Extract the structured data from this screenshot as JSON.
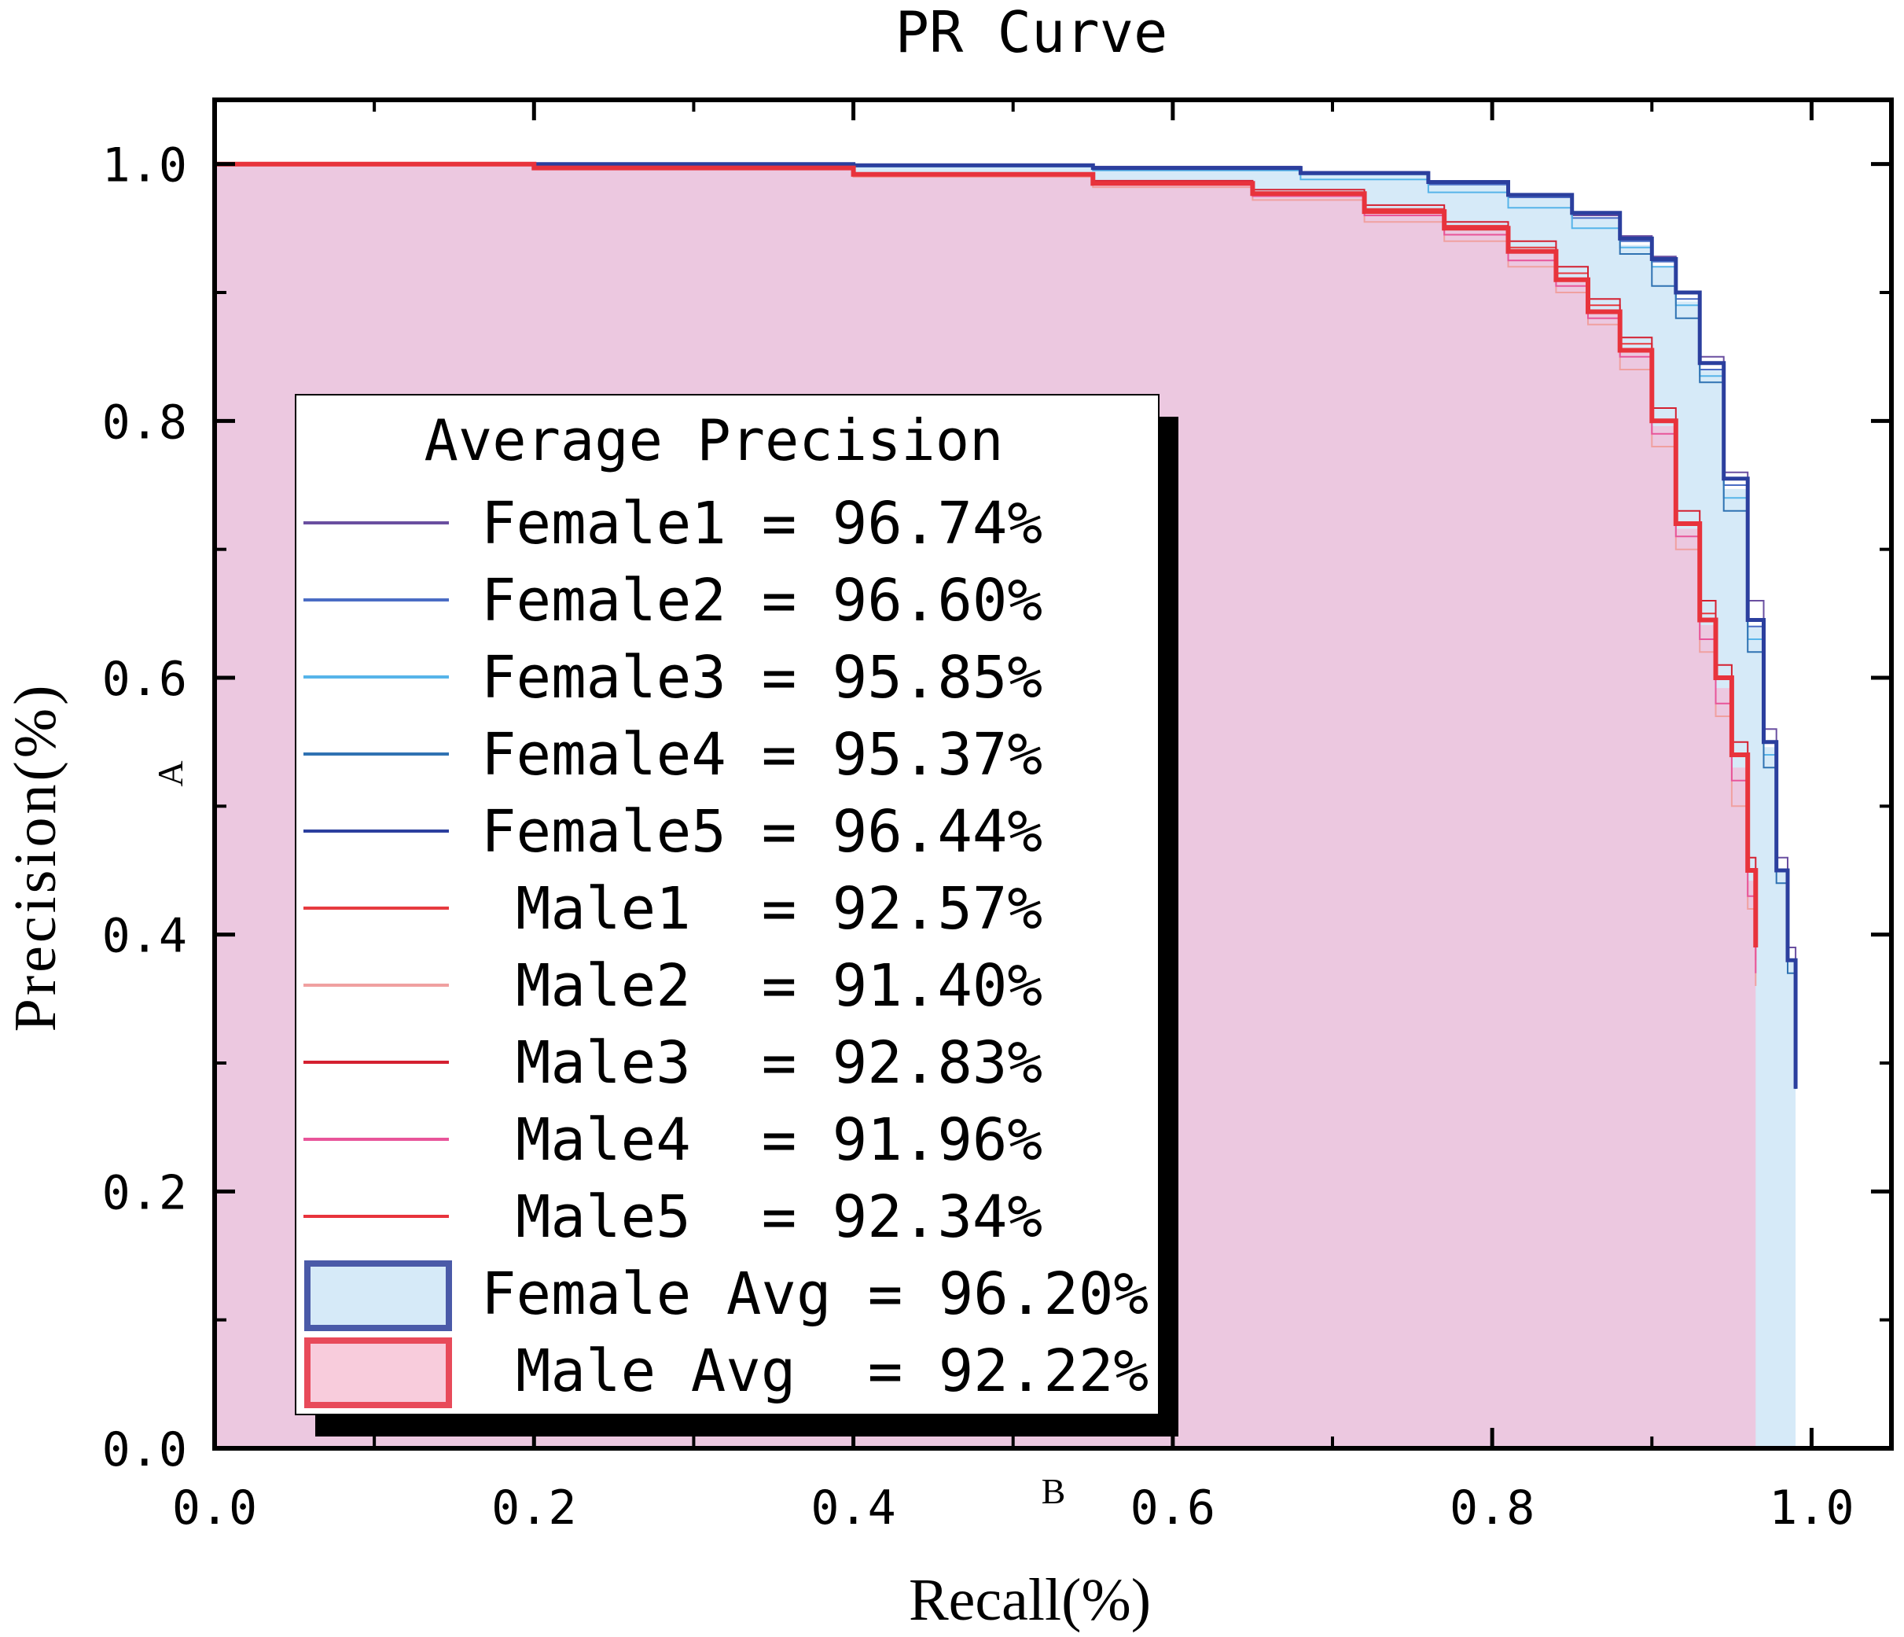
{
  "chart_data": {
    "type": "line",
    "title": "PR Curve",
    "xlabel": "Recall(%)",
    "ylabel": "Precision(%)",
    "xlim": [
      0.0,
      1.05
    ],
    "ylim": [
      0.0,
      1.05
    ],
    "xticks": [
      "0.0",
      "0.2",
      "0.4",
      "0.6",
      "0.8",
      "1.0"
    ],
    "yticks": [
      "0.0",
      "0.2",
      "0.4",
      "0.6",
      "0.8",
      "1.0"
    ],
    "annotations": {
      "a": "A",
      "b": "B"
    },
    "legend": {
      "title": "Average Precision",
      "position": "center-left",
      "entries": [
        {
          "label": "Female1",
          "value": "96.74%",
          "color": "#6a4fa0"
        },
        {
          "label": "Female2",
          "value": "96.60%",
          "color": "#4a6cc4"
        },
        {
          "label": "Female3",
          "value": "95.85%",
          "color": "#56b4e9"
        },
        {
          "label": "Female4",
          "value": "95.37%",
          "color": "#2f72b2"
        },
        {
          "label": "Female5",
          "value": "96.44%",
          "color": "#2b3f9e"
        },
        {
          "label": "Male1",
          "value": "92.57%",
          "color": "#e63a3f"
        },
        {
          "label": "Male2",
          "value": "91.40%",
          "color": "#f0a0a0"
        },
        {
          "label": "Male3",
          "value": "92.83%",
          "color": "#d42030"
        },
        {
          "label": "Male4",
          "value": "91.96%",
          "color": "#e8559a"
        },
        {
          "label": "Male5",
          "value": "92.34%",
          "color": "#e8333c"
        }
      ],
      "avg_entries": [
        {
          "label": "Female Avg",
          "value": "96.20%",
          "fill": "#d6eaf8",
          "border": "#4a5aa8"
        },
        {
          "label": "Male  Avg",
          "value": "92.22%",
          "fill": "#f8ccdc",
          "border": "#e84a5a"
        }
      ]
    },
    "series": [
      {
        "name": "Female1",
        "color": "#6a4fa0",
        "width": 2,
        "x": [
          0,
          0.2,
          0.4,
          0.55,
          0.68,
          0.76,
          0.81,
          0.85,
          0.88,
          0.9,
          0.915,
          0.93,
          0.945,
          0.96,
          0.97,
          0.978,
          0.985,
          0.99
        ],
        "y": [
          1.0,
          1.0,
          0.999,
          0.998,
          0.994,
          0.985,
          0.975,
          0.96,
          0.944,
          0.928,
          0.9,
          0.85,
          0.76,
          0.66,
          0.56,
          0.46,
          0.39,
          0.3
        ]
      },
      {
        "name": "Female2",
        "color": "#4a6cc4",
        "width": 2,
        "x": [
          0,
          0.2,
          0.4,
          0.55,
          0.68,
          0.76,
          0.81,
          0.85,
          0.88,
          0.9,
          0.915,
          0.93,
          0.945,
          0.96,
          0.97,
          0.978,
          0.985,
          0.99
        ],
        "y": [
          1.0,
          1.0,
          0.999,
          0.997,
          0.993,
          0.984,
          0.974,
          0.958,
          0.94,
          0.924,
          0.895,
          0.84,
          0.75,
          0.64,
          0.55,
          0.45,
          0.38,
          0.28
        ]
      },
      {
        "name": "Female3",
        "color": "#56b4e9",
        "width": 2,
        "x": [
          0,
          0.2,
          0.4,
          0.55,
          0.68,
          0.76,
          0.81,
          0.85,
          0.88,
          0.9,
          0.915,
          0.93,
          0.945,
          0.96,
          0.97,
          0.978,
          0.985,
          0.99
        ],
        "y": [
          1.0,
          1.0,
          0.998,
          0.995,
          0.988,
          0.978,
          0.966,
          0.95,
          0.935,
          0.92,
          0.89,
          0.835,
          0.74,
          0.63,
          0.54,
          0.45,
          0.38,
          0.28
        ]
      },
      {
        "name": "Female4",
        "color": "#2f72b2",
        "width": 2,
        "x": [
          0,
          0.2,
          0.4,
          0.55,
          0.68,
          0.76,
          0.81,
          0.85,
          0.88,
          0.9,
          0.915,
          0.93,
          0.945,
          0.96,
          0.97,
          0.978,
          0.985,
          0.99
        ],
        "y": [
          1.0,
          1.0,
          0.999,
          0.996,
          0.992,
          0.986,
          0.976,
          0.962,
          0.93,
          0.905,
          0.88,
          0.83,
          0.73,
          0.62,
          0.53,
          0.44,
          0.37,
          0.28
        ]
      },
      {
        "name": "Female5",
        "color": "#2b3f9e",
        "width": 5,
        "x": [
          0,
          0.2,
          0.4,
          0.55,
          0.68,
          0.76,
          0.81,
          0.85,
          0.88,
          0.9,
          0.915,
          0.93,
          0.945,
          0.96,
          0.97,
          0.978,
          0.985,
          0.99
        ],
        "y": [
          1.0,
          1.0,
          0.999,
          0.997,
          0.993,
          0.986,
          0.976,
          0.962,
          0.942,
          0.926,
          0.9,
          0.845,
          0.755,
          0.645,
          0.55,
          0.45,
          0.38,
          0.28
        ]
      },
      {
        "name": "Male1",
        "color": "#e63a3f",
        "width": 2,
        "x": [
          0,
          0.2,
          0.4,
          0.55,
          0.65,
          0.72,
          0.77,
          0.81,
          0.84,
          0.86,
          0.88,
          0.9,
          0.915,
          0.93,
          0.94,
          0.95,
          0.96,
          0.965
        ],
        "y": [
          1.0,
          0.998,
          0.992,
          0.985,
          0.978,
          0.965,
          0.952,
          0.935,
          0.915,
          0.89,
          0.86,
          0.8,
          0.72,
          0.65,
          0.6,
          0.54,
          0.45,
          0.38
        ]
      },
      {
        "name": "Male2",
        "color": "#f0a0a0",
        "width": 2,
        "x": [
          0,
          0.2,
          0.4,
          0.55,
          0.65,
          0.72,
          0.77,
          0.81,
          0.84,
          0.86,
          0.88,
          0.9,
          0.915,
          0.93,
          0.94,
          0.95,
          0.96,
          0.965
        ],
        "y": [
          1.0,
          0.996,
          0.99,
          0.982,
          0.972,
          0.955,
          0.94,
          0.92,
          0.9,
          0.875,
          0.84,
          0.78,
          0.7,
          0.62,
          0.57,
          0.5,
          0.42,
          0.36
        ]
      },
      {
        "name": "Male3",
        "color": "#d42030",
        "width": 2,
        "x": [
          0,
          0.2,
          0.4,
          0.55,
          0.65,
          0.72,
          0.77,
          0.81,
          0.84,
          0.86,
          0.88,
          0.9,
          0.915,
          0.93,
          0.94,
          0.95,
          0.96,
          0.965
        ],
        "y": [
          1.0,
          0.998,
          0.993,
          0.987,
          0.98,
          0.968,
          0.955,
          0.94,
          0.92,
          0.895,
          0.865,
          0.81,
          0.73,
          0.66,
          0.61,
          0.55,
          0.46,
          0.39
        ]
      },
      {
        "name": "Male4",
        "color": "#e8559a",
        "width": 2,
        "x": [
          0,
          0.2,
          0.4,
          0.55,
          0.65,
          0.72,
          0.77,
          0.81,
          0.84,
          0.86,
          0.88,
          0.9,
          0.915,
          0.93,
          0.94,
          0.95,
          0.96,
          0.965
        ],
        "y": [
          1.0,
          0.997,
          0.991,
          0.984,
          0.975,
          0.96,
          0.945,
          0.925,
          0.905,
          0.88,
          0.85,
          0.79,
          0.71,
          0.63,
          0.58,
          0.52,
          0.43,
          0.37
        ]
      },
      {
        "name": "Male5",
        "color": "#e8333c",
        "width": 6,
        "x": [
          0,
          0.2,
          0.4,
          0.55,
          0.65,
          0.72,
          0.77,
          0.81,
          0.84,
          0.86,
          0.88,
          0.9,
          0.915,
          0.93,
          0.94,
          0.95,
          0.96,
          0.965
        ],
        "y": [
          1.0,
          0.997,
          0.992,
          0.985,
          0.977,
          0.963,
          0.95,
          0.932,
          0.91,
          0.885,
          0.855,
          0.8,
          0.72,
          0.645,
          0.6,
          0.54,
          0.45,
          0.39
        ]
      }
    ],
    "areas": [
      {
        "name": "Female Avg",
        "fill": "#d6eaf8",
        "x": [
          0,
          0.2,
          0.4,
          0.55,
          0.68,
          0.76,
          0.81,
          0.85,
          0.88,
          0.9,
          0.915,
          0.93,
          0.945,
          0.96,
          0.97,
          0.978,
          0.985,
          0.99
        ],
        "y": [
          1.0,
          1.0,
          0.999,
          0.997,
          0.992,
          0.984,
          0.973,
          0.958,
          0.937,
          0.92,
          0.893,
          0.84,
          0.747,
          0.64,
          0.546,
          0.45,
          0.38,
          0.28
        ]
      },
      {
        "name": "Male Avg",
        "fill": "#ecc8e0",
        "x": [
          0,
          0.2,
          0.4,
          0.55,
          0.65,
          0.72,
          0.77,
          0.81,
          0.84,
          0.86,
          0.88,
          0.9,
          0.915,
          0.93,
          0.94,
          0.95,
          0.96,
          0.965
        ],
        "y": [
          1.0,
          0.997,
          0.992,
          0.985,
          0.976,
          0.962,
          0.948,
          0.93,
          0.91,
          0.885,
          0.854,
          0.796,
          0.716,
          0.641,
          0.592,
          0.53,
          0.442,
          0.378
        ]
      }
    ]
  }
}
